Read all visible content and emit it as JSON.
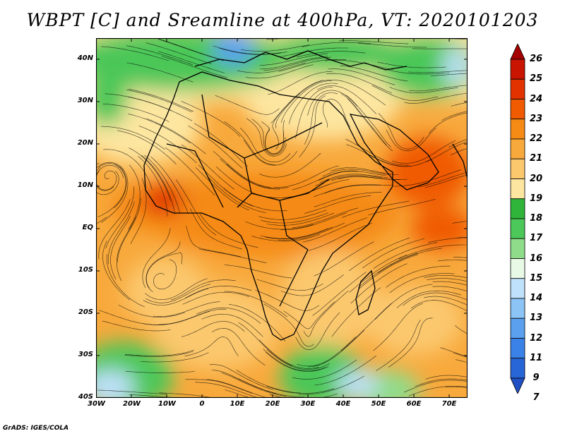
{
  "title": "WBPT [C] and Sreamline at 400hPa, VT: 2020101203",
  "footer": "GrADS: IGES/COLA",
  "map": {
    "lon_range": [
      -30,
      75
    ],
    "lat_range": [
      -40,
      45
    ],
    "lon_ticks": [
      "30W",
      "20W",
      "10W",
      "0",
      "10E",
      "20E",
      "30E",
      "40E",
      "50E",
      "60E",
      "70E"
    ],
    "lat_ticks": [
      "40N",
      "30N",
      "20N",
      "10N",
      "EQ",
      "10S",
      "20S",
      "30S",
      "40S"
    ]
  },
  "colorbar": {
    "levels": [
      "26",
      "25",
      "24",
      "23",
      "22",
      "21",
      "20",
      "19",
      "18",
      "17",
      "16",
      "15",
      "14",
      "13",
      "12",
      "11",
      "9",
      "7"
    ],
    "colors": [
      "#a50000",
      "#c81400",
      "#e13200",
      "#f05a00",
      "#f58a14",
      "#f8a93c",
      "#fbc86e",
      "#fde6a0",
      "#2fb63a",
      "#4cc759",
      "#8fdc8a",
      "#e8fae6",
      "#bfe1fb",
      "#8cc4f5",
      "#5aa0ee",
      "#3b82e8",
      "#2865d7",
      "#1f4fc2"
    ]
  }
}
